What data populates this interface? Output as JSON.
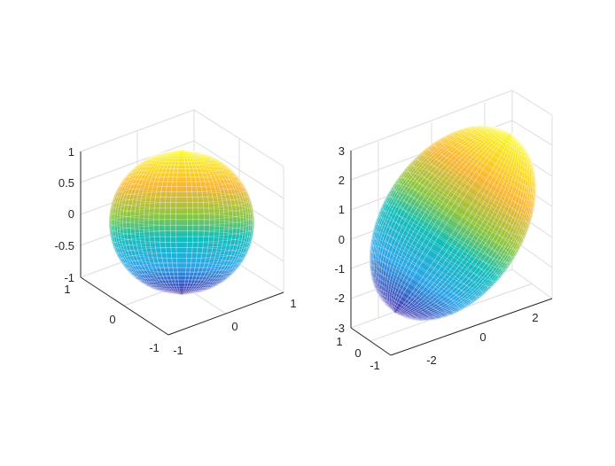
{
  "chart_data": [
    {
      "type": "surface",
      "surface": "sphere",
      "style": "mesh",
      "colormap": "parula",
      "grid": true,
      "zlim": [
        -1,
        1
      ],
      "xlim": [
        -1,
        1
      ],
      "ylim": [
        -1,
        1
      ],
      "z_ticks": [
        "1",
        "0.5",
        "0",
        "-0.5",
        "-1"
      ],
      "y_ticks": [
        "1",
        "0",
        "-1"
      ],
      "x_ticks": [
        "-1",
        "0",
        "1"
      ]
    },
    {
      "type": "surface",
      "surface": "ellipsoid",
      "style": "mesh",
      "colormap": "parula",
      "grid": true,
      "zlim": [
        -3,
        3
      ],
      "xlim": [
        -3,
        3
      ],
      "ylim": [
        -1,
        1
      ],
      "z_ticks": [
        "3",
        "2",
        "1",
        "0",
        "-1",
        "-2",
        "-3"
      ],
      "y_ticks": [
        "1",
        "0",
        "-1"
      ],
      "x_ticks": [
        "-2",
        "0",
        "2"
      ]
    }
  ],
  "colors": {
    "top": "#f9fb0e",
    "upper": "#fbb532",
    "middle": "#13beb9",
    "bottom": "#3e26a8",
    "axis": "#262626",
    "grid": "#dcdcdc"
  }
}
